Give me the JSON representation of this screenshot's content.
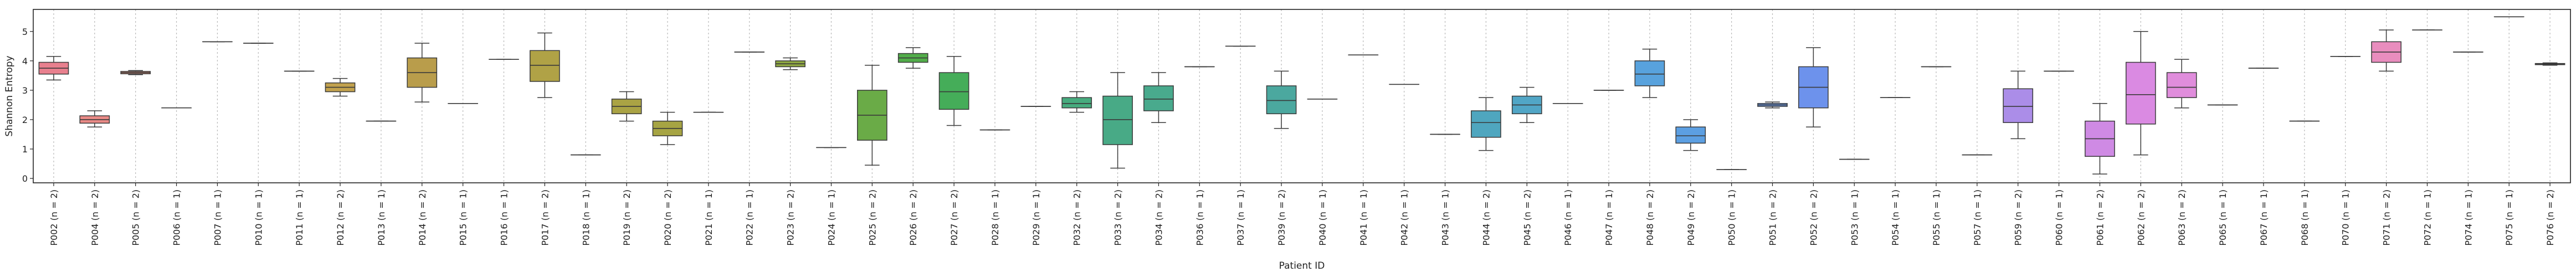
{
  "chart_data": {
    "type": "box",
    "title": "",
    "xlabel": "Patient ID",
    "ylabel": "Shannon Entropy",
    "ylim": [
      -0.15,
      5.75
    ],
    "yticks": [
      0,
      1,
      2,
      3,
      4,
      5
    ],
    "grid": "vertical dotted lines at each category",
    "categories": [
      "P002 (n = 2)",
      "P004 (n = 2)",
      "P005 (n = 2)",
      "P006 (n = 1)",
      "P007 (n = 1)",
      "P010 (n = 1)",
      "P011 (n = 1)",
      "P012 (n = 2)",
      "P013 (n = 1)",
      "P014 (n = 2)",
      "P015 (n = 1)",
      "P016 (n = 1)",
      "P017 (n = 2)",
      "P018 (n = 1)",
      "P019 (n = 2)",
      "P020 (n = 2)",
      "P021 (n = 1)",
      "P022 (n = 1)",
      "P023 (n = 2)",
      "P024 (n = 1)",
      "P025 (n = 2)",
      "P026 (n = 2)",
      "P027 (n = 2)",
      "P028 (n = 1)",
      "P029 (n = 1)",
      "P032 (n = 2)",
      "P033 (n = 2)",
      "P034 (n = 2)",
      "P036 (n = 1)",
      "P037 (n = 1)",
      "P039 (n = 2)",
      "P040 (n = 1)",
      "P041 (n = 1)",
      "P042 (n = 1)",
      "P043 (n = 1)",
      "P044 (n = 2)",
      "P045 (n = 2)",
      "P046 (n = 1)",
      "P047 (n = 1)",
      "P048 (n = 2)",
      "P049 (n = 2)",
      "P050 (n = 1)",
      "P051 (n = 2)",
      "P052 (n = 2)",
      "P053 (n = 1)",
      "P054 (n = 1)",
      "P055 (n = 1)",
      "P057 (n = 1)",
      "P059 (n = 2)",
      "P060 (n = 1)",
      "P061 (n = 2)",
      "P062 (n = 2)",
      "P063 (n = 2)",
      "P065 (n = 1)",
      "P067 (n = 1)",
      "P068 (n = 1)",
      "P070 (n = 1)",
      "P071 (n = 2)",
      "P072 (n = 1)",
      "P074 (n = 1)",
      "P075 (n = 1)",
      "P076 (n = 2)"
    ],
    "boxes": [
      {
        "min": 3.35,
        "q1": 3.55,
        "median": 3.75,
        "q3": 3.95,
        "max": 4.15,
        "color": "#e8808e"
      },
      {
        "min": 1.75,
        "q1": 1.88,
        "median": 2.0,
        "q3": 2.13,
        "max": 2.3,
        "color": "#e98a86"
      },
      {
        "min": 3.53,
        "q1": 3.56,
        "median": 3.6,
        "q3": 3.64,
        "max": 3.67,
        "color": "#e6917b"
      },
      {
        "min": 2.4,
        "q1": 2.4,
        "median": 2.4,
        "q3": 2.4,
        "max": 2.4,
        "color": "#df9a6d"
      },
      {
        "min": 4.65,
        "q1": 4.65,
        "median": 4.65,
        "q3": 4.65,
        "max": 4.65,
        "color": "#d69f5c"
      },
      {
        "min": 4.6,
        "q1": 4.6,
        "median": 4.6,
        "q3": 4.6,
        "max": 4.6,
        "color": "#cda356"
      },
      {
        "min": 3.65,
        "q1": 3.65,
        "median": 3.65,
        "q3": 3.65,
        "max": 3.65,
        "color": "#c6a452"
      },
      {
        "min": 2.8,
        "q1": 2.95,
        "median": 3.1,
        "q3": 3.25,
        "max": 3.4,
        "color": "#c2a24e"
      },
      {
        "min": 1.95,
        "q1": 1.95,
        "median": 1.95,
        "q3": 1.95,
        "max": 1.95,
        "color": "#bda24b"
      },
      {
        "min": 2.6,
        "q1": 3.1,
        "median": 3.6,
        "q3": 4.1,
        "max": 4.6,
        "color": "#b99d4b"
      },
      {
        "min": 2.55,
        "q1": 2.55,
        "median": 2.55,
        "q3": 2.55,
        "max": 2.55,
        "color": "#b5a049"
      },
      {
        "min": 4.05,
        "q1": 4.05,
        "median": 4.05,
        "q3": 4.05,
        "max": 4.05,
        "color": "#b2a148"
      },
      {
        "min": 2.75,
        "q1": 3.3,
        "median": 3.85,
        "q3": 4.35,
        "max": 4.95,
        "color": "#b0a246"
      },
      {
        "min": 0.8,
        "q1": 0.8,
        "median": 0.8,
        "q3": 0.8,
        "max": 0.8,
        "color": "#aea345"
      },
      {
        "min": 1.95,
        "q1": 2.2,
        "median": 2.45,
        "q3": 2.7,
        "max": 2.95,
        "color": "#aaa344"
      },
      {
        "min": 1.15,
        "q1": 1.45,
        "median": 1.7,
        "q3": 1.95,
        "max": 2.25,
        "color": "#a6a443"
      },
      {
        "min": 2.25,
        "q1": 2.25,
        "median": 2.25,
        "q3": 2.25,
        "max": 2.25,
        "color": "#a2a542"
      },
      {
        "min": 4.3,
        "q1": 4.3,
        "median": 4.3,
        "q3": 4.3,
        "max": 4.3,
        "color": "#9da641"
      },
      {
        "min": 3.7,
        "q1": 3.8,
        "median": 3.9,
        "q3": 4.0,
        "max": 4.1,
        "color": "#8fa842"
      },
      {
        "min": 1.05,
        "q1": 1.05,
        "median": 1.05,
        "q3": 1.05,
        "max": 1.05,
        "color": "#80a944"
      },
      {
        "min": 0.45,
        "q1": 1.3,
        "median": 2.15,
        "q3": 3.0,
        "max": 3.85,
        "color": "#6aab47"
      },
      {
        "min": 3.75,
        "q1": 3.95,
        "median": 4.1,
        "q3": 4.25,
        "max": 4.45,
        "color": "#52ad4a"
      },
      {
        "min": 1.8,
        "q1": 2.35,
        "median": 2.95,
        "q3": 3.6,
        "max": 4.15,
        "color": "#45ad59"
      },
      {
        "min": 1.65,
        "q1": 1.65,
        "median": 1.65,
        "q3": 1.65,
        "max": 1.65,
        "color": "#45ac68"
      },
      {
        "min": 2.45,
        "q1": 2.45,
        "median": 2.45,
        "q3": 2.45,
        "max": 2.45,
        "color": "#46ab74"
      },
      {
        "min": 2.25,
        "q1": 2.4,
        "median": 2.55,
        "q3": 2.75,
        "max": 2.95,
        "color": "#47ab7e"
      },
      {
        "min": 0.35,
        "q1": 1.15,
        "median": 2.0,
        "q3": 2.8,
        "max": 3.6,
        "color": "#48aa86"
      },
      {
        "min": 1.9,
        "q1": 2.3,
        "median": 2.7,
        "q3": 3.15,
        "max": 3.6,
        "color": "#49aa8d"
      },
      {
        "min": 3.8,
        "q1": 3.8,
        "median": 3.8,
        "q3": 3.8,
        "max": 3.8,
        "color": "#4aa993"
      },
      {
        "min": 4.5,
        "q1": 4.5,
        "median": 4.5,
        "q3": 4.5,
        "max": 4.5,
        "color": "#4aa999"
      },
      {
        "min": 1.7,
        "q1": 2.2,
        "median": 2.65,
        "q3": 3.15,
        "max": 3.65,
        "color": "#4ba89f"
      },
      {
        "min": 2.7,
        "q1": 2.7,
        "median": 2.7,
        "q3": 2.7,
        "max": 2.7,
        "color": "#4ca8a5"
      },
      {
        "min": 4.2,
        "q1": 4.2,
        "median": 4.2,
        "q3": 4.2,
        "max": 4.2,
        "color": "#4ca8ab"
      },
      {
        "min": 3.2,
        "q1": 3.2,
        "median": 3.2,
        "q3": 3.2,
        "max": 3.2,
        "color": "#4da7b1"
      },
      {
        "min": 1.5,
        "q1": 1.5,
        "median": 1.5,
        "q3": 1.5,
        "max": 1.5,
        "color": "#4ea7b8"
      },
      {
        "min": 0.95,
        "q1": 1.4,
        "median": 1.9,
        "q3": 2.3,
        "max": 2.75,
        "color": "#4fa6bf"
      },
      {
        "min": 1.9,
        "q1": 2.2,
        "median": 2.5,
        "q3": 2.8,
        "max": 3.1,
        "color": "#51a6c6"
      },
      {
        "min": 2.55,
        "q1": 2.55,
        "median": 2.55,
        "q3": 2.55,
        "max": 2.55,
        "color": "#53a5ce"
      },
      {
        "min": 3.0,
        "q1": 3.0,
        "median": 3.0,
        "q3": 3.0,
        "max": 3.0,
        "color": "#55a4d6"
      },
      {
        "min": 2.75,
        "q1": 3.15,
        "median": 3.55,
        "q3": 4.0,
        "max": 4.4,
        "color": "#58a2dd"
      },
      {
        "min": 0.95,
        "q1": 1.2,
        "median": 1.45,
        "q3": 1.75,
        "max": 2.0,
        "color": "#5c9fe2"
      },
      {
        "min": 0.3,
        "q1": 0.3,
        "median": 0.3,
        "q3": 0.3,
        "max": 0.3,
        "color": "#619be6"
      },
      {
        "min": 2.4,
        "q1": 2.45,
        "median": 2.5,
        "q3": 2.55,
        "max": 2.6,
        "color": "#6797e9"
      },
      {
        "min": 1.75,
        "q1": 2.4,
        "median": 3.1,
        "q3": 3.8,
        "max": 4.45,
        "color": "#6d92ec"
      },
      {
        "min": 0.65,
        "q1": 0.65,
        "median": 0.65,
        "q3": 0.65,
        "max": 0.65,
        "color": "#748dee"
      },
      {
        "min": 2.75,
        "q1": 2.75,
        "median": 2.75,
        "q3": 2.75,
        "max": 2.75,
        "color": "#7c88ef"
      },
      {
        "min": 3.8,
        "q1": 3.8,
        "median": 3.8,
        "q3": 3.8,
        "max": 3.8,
        "color": "#8583f0"
      },
      {
        "min": 0.8,
        "q1": 0.8,
        "median": 0.8,
        "q3": 0.8,
        "max": 0.8,
        "color": "#8e7ff0"
      },
      {
        "min": 1.35,
        "q1": 1.9,
        "median": 2.45,
        "q3": 3.05,
        "max": 3.65,
        "color": "#ab8de8"
      },
      {
        "min": 3.65,
        "q1": 3.65,
        "median": 3.65,
        "q3": 3.65,
        "max": 3.65,
        "color": "#b485e8"
      },
      {
        "min": 0.15,
        "q1": 0.75,
        "median": 1.35,
        "q3": 1.95,
        "max": 2.55,
        "color": "#cf8ae4"
      },
      {
        "min": 0.8,
        "q1": 1.85,
        "median": 2.85,
        "q3": 3.95,
        "max": 5.0,
        "color": "#da8ae2"
      },
      {
        "min": 2.4,
        "q1": 2.75,
        "median": 3.1,
        "q3": 3.6,
        "max": 4.05,
        "color": "#e08ddc"
      },
      {
        "min": 2.5,
        "q1": 2.5,
        "median": 2.5,
        "q3": 2.5,
        "max": 2.5,
        "color": "#e48cd6"
      },
      {
        "min": 3.75,
        "q1": 3.75,
        "median": 3.75,
        "q3": 3.75,
        "max": 3.75,
        "color": "#e78ccf"
      },
      {
        "min": 1.95,
        "q1": 1.95,
        "median": 1.95,
        "q3": 1.95,
        "max": 1.95,
        "color": "#e98bc8"
      },
      {
        "min": 4.15,
        "q1": 4.15,
        "median": 4.15,
        "q3": 4.15,
        "max": 4.15,
        "color": "#ea8ac1"
      },
      {
        "min": 3.65,
        "q1": 3.95,
        "median": 4.3,
        "q3": 4.65,
        "max": 5.05,
        "color": "#e98dbe"
      },
      {
        "min": 5.05,
        "q1": 5.05,
        "median": 5.05,
        "q3": 5.05,
        "max": 5.05,
        "color": "#ea8ab5"
      },
      {
        "min": 4.3,
        "q1": 4.3,
        "median": 4.3,
        "q3": 4.3,
        "max": 4.3,
        "color": "#ea8aab"
      },
      {
        "min": 5.5,
        "q1": 5.5,
        "median": 5.5,
        "q3": 5.5,
        "max": 5.5,
        "color": "#ea89a1"
      },
      {
        "min": 3.85,
        "q1": 3.87,
        "median": 3.89,
        "q3": 3.91,
        "max": 3.93,
        "color": "#e98a9a"
      }
    ]
  }
}
